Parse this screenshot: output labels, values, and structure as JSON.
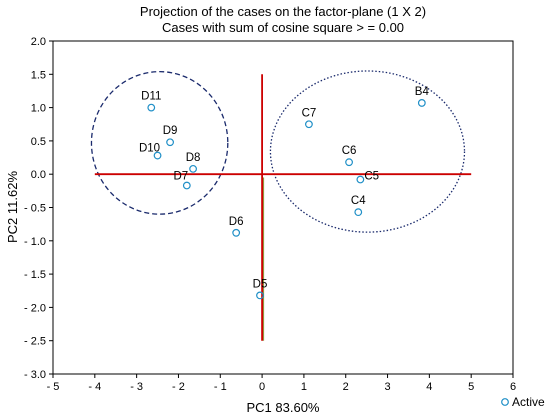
{
  "chart_data": {
    "type": "scatter",
    "title": "Projection of the cases on the factor-plane (1 X 2)",
    "subtitle": "Cases with sum of cosine square > = 0.00",
    "xlabel": "PC1 83.60%",
    "ylabel": "PC2 11.62%",
    "xlim": [
      -5,
      6
    ],
    "ylim": [
      -3.0,
      2.0
    ],
    "x_ticks": [
      "- 5",
      "- 4",
      "- 3",
      "- 2",
      "- 1",
      "0",
      "1",
      "2",
      "3",
      "4",
      "5",
      "6"
    ],
    "y_ticks": [
      "2.0",
      "1.5",
      "1.0",
      "0.5",
      "0.0",
      "- 0.5",
      "- 1.0",
      "- 1.5",
      "- 2.0",
      "- 2.5",
      "- 3.0"
    ],
    "grid": false,
    "legend": {
      "position": "bottom-right",
      "entries": [
        "Active"
      ]
    },
    "series": [
      {
        "name": "Active",
        "points": [
          {
            "label": "D11",
            "x": -2.65,
            "y": 1.0
          },
          {
            "label": "D9",
            "x": -2.2,
            "y": 0.48
          },
          {
            "label": "D10",
            "x": -2.5,
            "y": 0.28
          },
          {
            "label": "D8",
            "x": -1.65,
            "y": 0.08
          },
          {
            "label": "D7",
            "x": -1.8,
            "y": -0.17
          },
          {
            "label": "D6",
            "x": -0.62,
            "y": -0.88
          },
          {
            "label": "D5",
            "x": -0.05,
            "y": -1.82
          },
          {
            "label": "C7",
            "x": 1.12,
            "y": 0.75
          },
          {
            "label": "C6",
            "x": 2.08,
            "y": 0.18
          },
          {
            "label": "C5",
            "x": 2.35,
            "y": -0.08
          },
          {
            "label": "C4",
            "x": 2.3,
            "y": -0.57
          },
          {
            "label": "B4",
            "x": 3.82,
            "y": 1.07
          }
        ]
      }
    ],
    "reference_lines": {
      "horizontal_y": 0,
      "vertical_x": 0
    },
    "colors": {
      "point": "#1f8fc7",
      "reference_line": "#cc0000",
      "ellipse": "#1a2a6c",
      "axis": "#000000"
    }
  }
}
